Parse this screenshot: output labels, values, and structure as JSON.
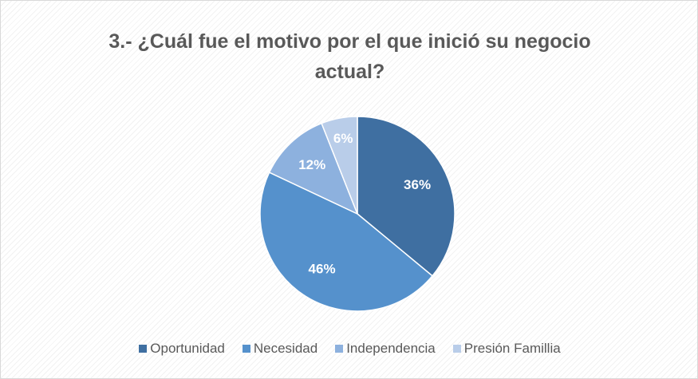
{
  "chart_data": {
    "type": "pie",
    "title": "3.- ¿Cuál fue el motivo por el que inició su negocio actual?",
    "categories": [
      "Oportunidad",
      "Necesidad",
      "Independencia",
      "Presión Famillia"
    ],
    "values": [
      36,
      46,
      12,
      6
    ],
    "value_labels": [
      "36%",
      "46%",
      "12%",
      "6%"
    ],
    "colors": [
      "#3f6fa1",
      "#5591cc",
      "#8db1de",
      "#b9cde9"
    ],
    "legend": "bottom"
  }
}
